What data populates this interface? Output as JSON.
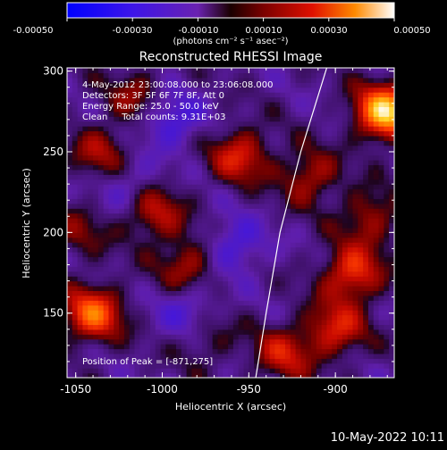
{
  "colorbar": {
    "tick_labels": [
      "-0.00050",
      "-0.00030",
      "-0.00010",
      "0.00010",
      "0.00030",
      "0.00050"
    ],
    "units_label": "(photons cm⁻² s⁻¹ asec⁻²)",
    "range": [
      -0.0005,
      0.0005
    ]
  },
  "plot": {
    "title": "Reconstructed RHESSI Image",
    "xlabel": "Heliocentric X (arcsec)",
    "ylabel": "Heliocentric Y (arcsec)"
  },
  "annotations": {
    "line1": "4-May-2012 23:00:08.000 to 23:06:08.000",
    "line2": "Detectors: 3F 5F 6F 7F 8F, Att 0",
    "line3": "Energy Range: 25.0 - 50.0 keV",
    "line4": "Clean     Total counts: 9.31E+03",
    "peak": "Position of Peak = [-871,275]"
  },
  "footer": {
    "timestamp": "10-May-2022 10:11"
  },
  "chart_data": {
    "type": "heatmap",
    "title": "Reconstructed RHESSI Image",
    "xlabel": "Heliocentric X (arcsec)",
    "ylabel": "Heliocentric Y (arcsec)",
    "xlim": [
      -1055,
      -866
    ],
    "ylim": [
      110,
      302
    ],
    "xticks": [
      -1050,
      -1000,
      -950,
      -900
    ],
    "yticks": [
      150,
      200,
      250,
      300
    ],
    "xtick_labels": [
      "-1050",
      "-1000",
      "-950",
      "-900"
    ],
    "ytick_labels": [
      "150",
      "200",
      "250",
      "300"
    ],
    "peak_position": [
      -871,
      275
    ],
    "bright_sources": [
      {
        "x": -871,
        "y": 275,
        "value": 0.0005
      },
      {
        "x": -1040,
        "y": 150,
        "value": 0.00035
      },
      {
        "x": -955,
        "y": 248,
        "value": 0.00025
      },
      {
        "x": -1005,
        "y": 212,
        "value": 0.00022
      },
      {
        "x": -985,
        "y": 180,
        "value": 0.0002
      },
      {
        "x": -890,
        "y": 175,
        "value": 0.0003
      },
      {
        "x": -915,
        "y": 235,
        "value": 0.0002
      },
      {
        "x": -1035,
        "y": 250,
        "value": 0.00018
      },
      {
        "x": -930,
        "y": 125,
        "value": 0.00022
      },
      {
        "x": -1015,
        "y": 285,
        "value": 0.00015
      },
      {
        "x": -900,
        "y": 140,
        "value": 0.00025
      },
      {
        "x": -975,
        "y": 135,
        "value": 0.00012
      },
      {
        "x": -880,
        "y": 210,
        "value": 0.00018
      },
      {
        "x": -1048,
        "y": 200,
        "value": 0.00012
      }
    ],
    "negative_sources": [
      {
        "x": -995,
        "y": 270,
        "value": -0.0002
      },
      {
        "x": -958,
        "y": 192,
        "value": -0.00018
      },
      {
        "x": -985,
        "y": 152,
        "value": -0.00016
      },
      {
        "x": -1020,
        "y": 230,
        "value": -0.00012
      }
    ],
    "limb_curve": [
      [
        -946,
        110
      ],
      [
        -940,
        150
      ],
      [
        -932,
        200
      ],
      [
        -920,
        250
      ],
      [
        -905,
        302
      ]
    ],
    "colormap": "blue-purple-red-yellow-white"
  }
}
